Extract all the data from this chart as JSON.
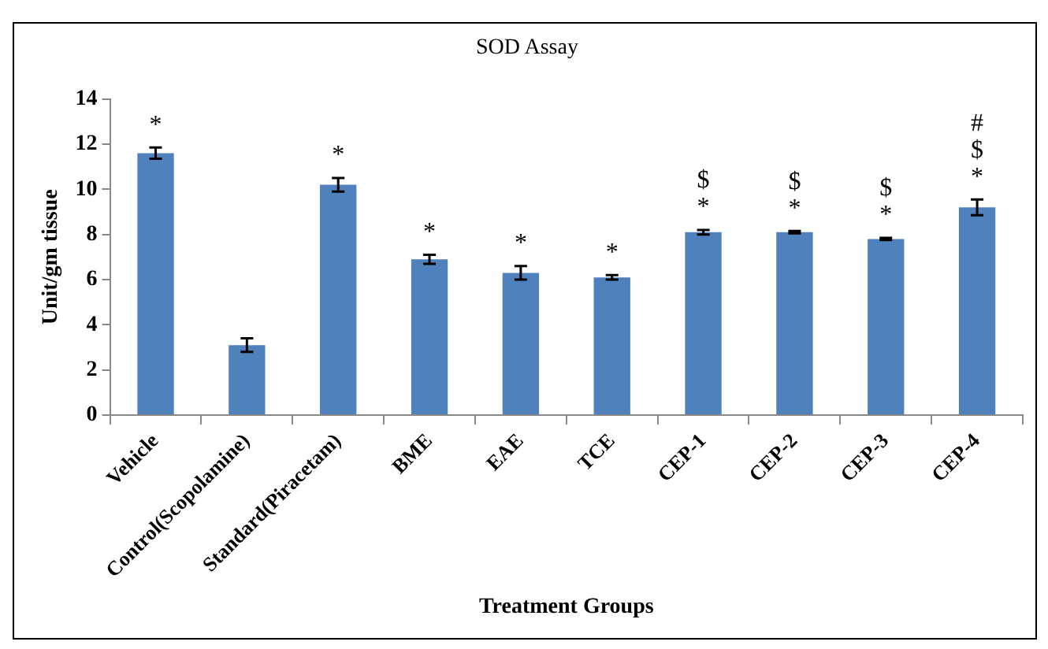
{
  "chart_data": {
    "type": "bar",
    "title": "SOD Assay",
    "xlabel": "Treatment Groups",
    "ylabel": "Unit/gm tissue",
    "categories": [
      "Vehicle",
      "Control(Scopolamine)",
      "Standard(Piracetam)",
      "BME",
      "EAE",
      "TCE",
      "CEP-1",
      "CEP-2",
      "CEP-3",
      "CEP-4"
    ],
    "series": [
      {
        "color": "#4f81bd",
        "values": [
          11.6,
          3.1,
          10.2,
          6.9,
          6.3,
          6.1,
          8.1,
          8.1,
          7.8,
          9.2
        ],
        "errors": [
          0.25,
          0.3,
          0.3,
          0.2,
          0.3,
          0.1,
          0.1,
          0.05,
          0.05,
          0.35
        ],
        "value_labels": [
          "*",
          null,
          "*",
          "*",
          "*",
          "*",
          "$\n*",
          "$\n*",
          "$\n*",
          "#\n$\n*"
        ]
      }
    ],
    "ylim": [
      0,
      14
    ],
    "yticks": [
      0,
      2,
      4,
      6,
      8,
      10,
      12,
      14
    ],
    "grid": false,
    "legend": false
  }
}
